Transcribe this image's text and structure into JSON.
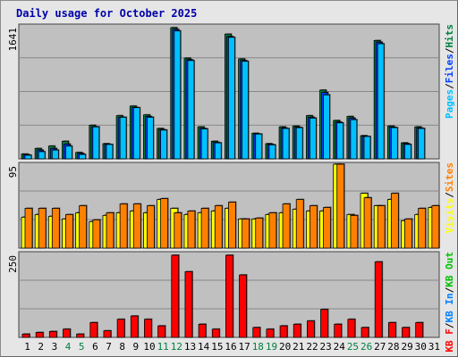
{
  "title": "Daily usage for October 2025",
  "colors": {
    "background": "#e6e6e6",
    "plot_bg": "#c0c0c0",
    "grid": "#888888",
    "hits": "#008040",
    "files": "#0040ff",
    "pages": "#00c0ff",
    "visits": "#ffff00",
    "sites": "#ff8000",
    "kbin": "#0080ff",
    "kbout": "#00c000",
    "kbf": "#ff0000",
    "weekend": "#008040",
    "weekday": "#000000"
  },
  "weekend_days": [
    4,
    5,
    11,
    12,
    18,
    19,
    25,
    26
  ],
  "chart_data": [
    {
      "type": "bar",
      "name": "hits-files-pages",
      "categories": [
        "1",
        "2",
        "3",
        "4",
        "5",
        "6",
        "7",
        "8",
        "9",
        "10",
        "11",
        "12",
        "13",
        "14",
        "15",
        "16",
        "17",
        "18",
        "19",
        "20",
        "21",
        "22",
        "23",
        "24",
        "25",
        "26",
        "27",
        "28",
        "29",
        "30",
        "31"
      ],
      "ylabel_max": "1641",
      "ylim": [
        0,
        1641
      ],
      "legend": [
        "Pages",
        "/",
        "Files",
        "/",
        "Hits"
      ],
      "series": [
        {
          "name": "Hits",
          "color": "#008040",
          "values": [
            60,
            130,
            160,
            220,
            80,
            420,
            190,
            540,
            660,
            550,
            380,
            1641,
            1260,
            400,
            220,
            1560,
            1250,
            320,
            190,
            400,
            410,
            540,
            860,
            480,
            530,
            290,
            1480,
            410,
            200,
            400,
            0
          ]
        },
        {
          "name": "Files",
          "color": "#0040ff",
          "values": [
            52,
            110,
            130,
            185,
            68,
            400,
            180,
            520,
            640,
            530,
            365,
            1620,
            1240,
            380,
            205,
            1530,
            1230,
            310,
            180,
            385,
            395,
            520,
            830,
            460,
            510,
            280,
            1460,
            395,
            190,
            385,
            0
          ]
        },
        {
          "name": "Pages",
          "color": "#00c0ff",
          "values": [
            45,
            90,
            110,
            160,
            55,
            400,
            180,
            520,
            640,
            520,
            360,
            1600,
            1230,
            375,
            200,
            1520,
            1220,
            310,
            175,
            380,
            390,
            510,
            800,
            450,
            490,
            280,
            1440,
            390,
            180,
            380,
            0
          ]
        }
      ]
    },
    {
      "type": "bar",
      "name": "visits-sites",
      "categories": [
        "1",
        "2",
        "3",
        "4",
        "5",
        "6",
        "7",
        "8",
        "9",
        "10",
        "11",
        "12",
        "13",
        "14",
        "15",
        "16",
        "17",
        "18",
        "19",
        "20",
        "21",
        "22",
        "23",
        "24",
        "25",
        "26",
        "27",
        "28",
        "29",
        "30",
        "31"
      ],
      "ylabel_max": "95",
      "ylim": [
        0,
        95
      ],
      "legend": [
        "Visits",
        "/",
        "Sites"
      ],
      "series": [
        {
          "name": "Visits",
          "color": "#ffff00",
          "values": [
            35,
            38,
            36,
            33,
            40,
            30,
            37,
            40,
            42,
            40,
            55,
            45,
            38,
            40,
            42,
            45,
            33,
            33,
            38,
            40,
            44,
            42,
            42,
            95,
            38,
            62,
            48,
            55,
            31,
            38,
            46
          ]
        },
        {
          "name": "Sites",
          "color": "#ff8000",
          "values": [
            45,
            45,
            45,
            38,
            48,
            32,
            40,
            50,
            50,
            48,
            56,
            40,
            42,
            45,
            48,
            52,
            33,
            34,
            40,
            50,
            55,
            48,
            46,
            95,
            37,
            57,
            48,
            62,
            33,
            45,
            48
          ]
        }
      ]
    },
    {
      "type": "bar",
      "name": "kbytes",
      "categories": [
        "1",
        "2",
        "3",
        "4",
        "5",
        "6",
        "7",
        "8",
        "9",
        "10",
        "11",
        "12",
        "13",
        "14",
        "15",
        "16",
        "17",
        "18",
        "19",
        "20",
        "21",
        "22",
        "23",
        "24",
        "25",
        "26",
        "27",
        "28",
        "29",
        "30",
        "31"
      ],
      "ylabel_max": "250",
      "ylim": [
        0,
        250
      ],
      "legend": [
        "KB F",
        "/",
        "KB In",
        "/",
        "KB Out"
      ],
      "series": [
        {
          "name": "KB F",
          "color": "#ff0000",
          "values": [
            10,
            15,
            18,
            25,
            10,
            45,
            20,
            55,
            65,
            55,
            35,
            250,
            200,
            40,
            25,
            250,
            190,
            30,
            25,
            35,
            40,
            50,
            85,
            40,
            55,
            30,
            230,
            45,
            30,
            45,
            0
          ]
        }
      ]
    }
  ]
}
